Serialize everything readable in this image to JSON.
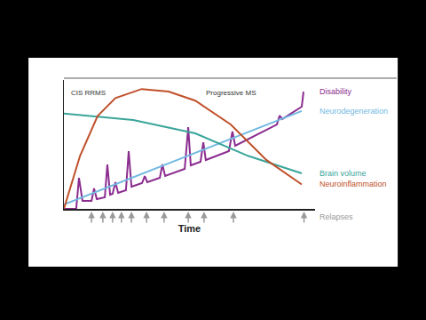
{
  "chart_data": {
    "type": "line",
    "xlabel": "Time",
    "xlim": [
      0,
      100
    ],
    "ylim": [
      0,
      100
    ],
    "xticks": [],
    "yticks": [],
    "tick_labels": false,
    "grid": false,
    "annotations": [
      "CIS RRMS",
      "Progressive MS"
    ],
    "series": [
      {
        "name": "Disability",
        "color": "#8b2c8f",
        "x": [
          0,
          4.9,
          6,
          7.4,
          11,
          12,
          13.1,
          16.3,
          17.3,
          18.4,
          19.4,
          20.5,
          21.6,
          24.7,
          25.8,
          26.9,
          31.1,
          32.2,
          33.2,
          38.2,
          39.2,
          40.3,
          48.1,
          49.5,
          50.5,
          54.4,
          55.5,
          56.5,
          65.7,
          67.1,
          68.2,
          84.8,
          85.9,
          87,
          94.7,
          95.4
        ],
        "values": [
          0,
          0,
          24.1,
          6.2,
          6.2,
          15.9,
          7.6,
          9,
          34.5,
          11,
          11.7,
          20.7,
          12.4,
          14.5,
          44.8,
          17.2,
          20,
          25.5,
          20.7,
          24.1,
          34.5,
          25.5,
          31,
          63.4,
          33.8,
          36.6,
          51.7,
          37.9,
          44.8,
          60,
          49,
          65.5,
          72.4,
          69.7,
          79.3,
          91
        ]
      },
      {
        "name": "Neurodegeneration",
        "color": "#72b9e2",
        "x": [
          0,
          94.7
        ],
        "values": [
          3.4,
          75.9
        ]
      },
      {
        "name": "Brain volume",
        "color": "#3aa59a",
        "x": [
          0,
          27.6,
          52.3,
          73.5,
          94.7
        ],
        "values": [
          74,
          69,
          58.6,
          41,
          27.6
        ]
      },
      {
        "name": "Neuroinflammation",
        "color": "#c0502a",
        "x": [
          0,
          6.4,
          13.4,
          20.5,
          31,
          41.7,
          52.3,
          66.4,
          80.6,
          94.7
        ],
        "values": [
          0,
          41,
          72,
          86,
          93,
          91,
          84,
          65.5,
          38,
          19
        ]
      }
    ],
    "relapses": {
      "name": "Relapses",
      "color": "#9a9a9a",
      "x": [
        11,
        15.5,
        19.4,
        22.9,
        26.9,
        32.9,
        39.9,
        49.5,
        55.8,
        67.5,
        95.6
      ]
    }
  }
}
